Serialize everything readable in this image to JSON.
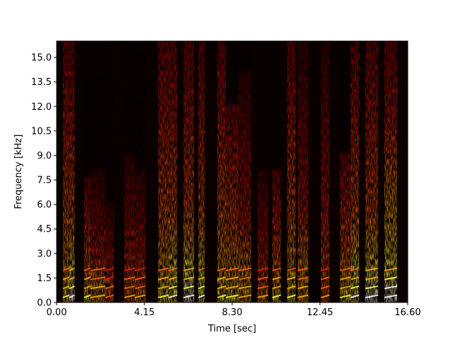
{
  "chart_data": {
    "type": "heatmap",
    "subtype": "spectrogram",
    "title": "",
    "xlabel": "Time [sec]",
    "ylabel": "Frequency [kHz]",
    "xlim": [
      0.0,
      16.6
    ],
    "ylim": [
      0.0,
      16.0
    ],
    "xticks": [
      0.0,
      4.15,
      8.3,
      12.45,
      16.6
    ],
    "xtick_labels": [
      "0.00",
      "4.15",
      "8.30",
      "12.45",
      "16.60"
    ],
    "yticks": [
      0.0,
      1.5,
      3.0,
      4.5,
      6.0,
      7.5,
      9.0,
      10.5,
      12.0,
      13.5,
      15.0
    ],
    "ytick_labels": [
      "0.0",
      "1.5",
      "3.0",
      "4.5",
      "6.0",
      "7.5",
      "9.0",
      "10.5",
      "12.0",
      "13.5",
      "15.0"
    ],
    "colormap": "hot",
    "colormap_stops": [
      "#000000",
      "#4a0000",
      "#a00000",
      "#e02000",
      "#ff6000",
      "#ffb000",
      "#ffff40",
      "#ffffff"
    ],
    "background_color": "#0a0000",
    "grid": false,
    "energy_segments": [
      {
        "start": 0.3,
        "end": 0.6,
        "intensity": 0.75,
        "max_khz": 16.0
      },
      {
        "start": 0.6,
        "end": 0.85,
        "intensity": 0.9,
        "max_khz": 16.0
      },
      {
        "start": 1.3,
        "end": 1.6,
        "intensity": 0.8,
        "max_khz": 7.5
      },
      {
        "start": 1.6,
        "end": 2.3,
        "intensity": 0.7,
        "max_khz": 8.0
      },
      {
        "start": 2.3,
        "end": 2.7,
        "intensity": 0.55,
        "max_khz": 6.0
      },
      {
        "start": 3.2,
        "end": 3.7,
        "intensity": 0.6,
        "max_khz": 9.0
      },
      {
        "start": 3.7,
        "end": 4.2,
        "intensity": 0.65,
        "max_khz": 8.0
      },
      {
        "start": 4.8,
        "end": 5.3,
        "intensity": 0.8,
        "max_khz": 16.0
      },
      {
        "start": 5.3,
        "end": 5.7,
        "intensity": 0.85,
        "max_khz": 16.0
      },
      {
        "start": 6.0,
        "end": 6.5,
        "intensity": 0.9,
        "max_khz": 16.0
      },
      {
        "start": 6.7,
        "end": 7.0,
        "intensity": 0.85,
        "max_khz": 16.0
      },
      {
        "start": 7.6,
        "end": 8.0,
        "intensity": 0.8,
        "max_khz": 16.0
      },
      {
        "start": 8.0,
        "end": 8.6,
        "intensity": 0.75,
        "max_khz": 12.0
      },
      {
        "start": 8.6,
        "end": 9.2,
        "intensity": 0.7,
        "max_khz": 14.0
      },
      {
        "start": 9.5,
        "end": 10.0,
        "intensity": 0.65,
        "max_khz": 8.0
      },
      {
        "start": 10.2,
        "end": 10.6,
        "intensity": 0.75,
        "max_khz": 8.0
      },
      {
        "start": 10.9,
        "end": 11.3,
        "intensity": 0.8,
        "max_khz": 16.0
      },
      {
        "start": 11.4,
        "end": 11.9,
        "intensity": 0.7,
        "max_khz": 16.0
      },
      {
        "start": 12.5,
        "end": 12.9,
        "intensity": 0.6,
        "max_khz": 16.0
      },
      {
        "start": 13.4,
        "end": 13.9,
        "intensity": 0.8,
        "max_khz": 9.0
      },
      {
        "start": 13.9,
        "end": 14.3,
        "intensity": 0.85,
        "max_khz": 16.0
      },
      {
        "start": 14.6,
        "end": 15.2,
        "intensity": 0.9,
        "max_khz": 16.0
      },
      {
        "start": 15.5,
        "end": 16.1,
        "intensity": 0.95,
        "max_khz": 16.0
      }
    ]
  }
}
